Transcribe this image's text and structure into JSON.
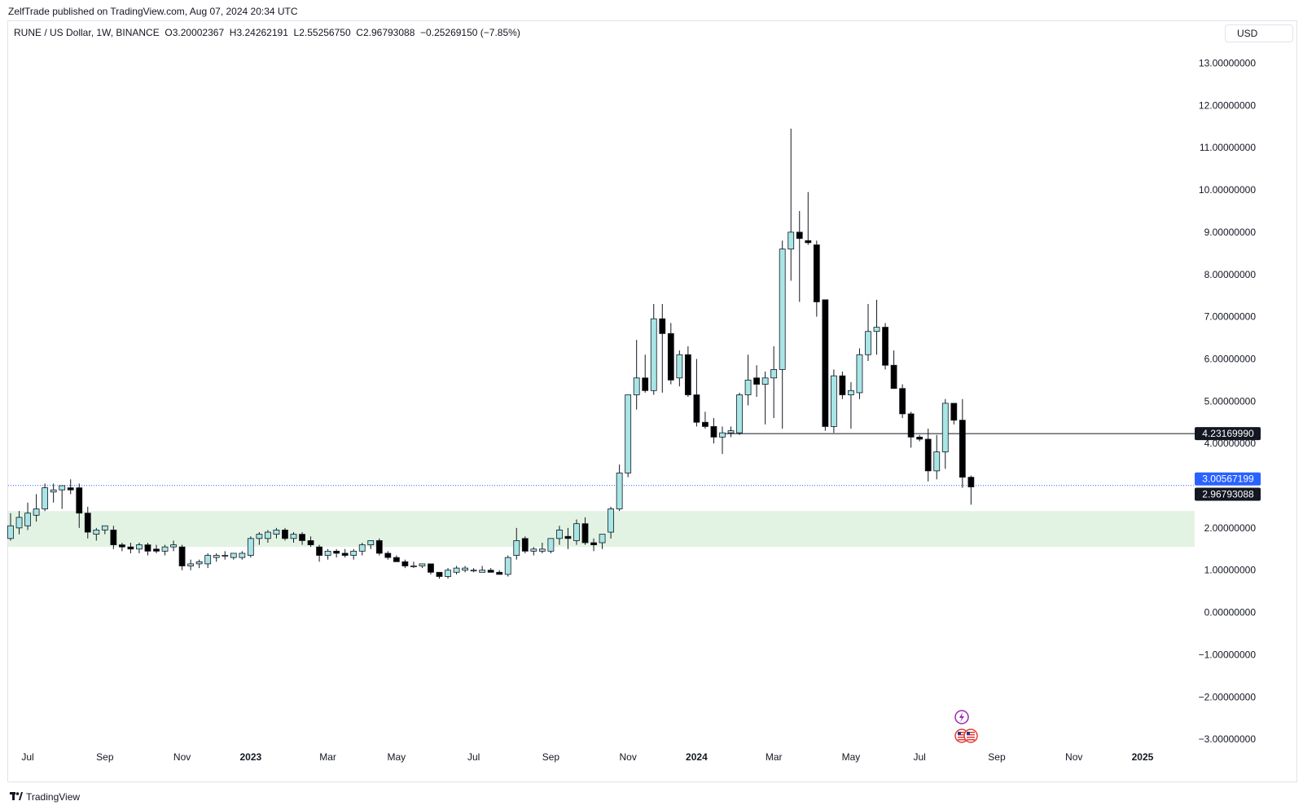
{
  "header": {
    "publisher": "ZelfTrade published on TradingView.com, Aug 07, 2024 20:34 UTC"
  },
  "legend": {
    "symbol": "RUNE / US Dollar, 1W, BINANCE",
    "open": "O3.20002367",
    "high": "H3.24262191",
    "low": "L2.55256750",
    "close": "C2.96793088",
    "change": "−0.25269150 (−7.85%)"
  },
  "currency_button": "USD",
  "footer": {
    "brand": "TradingView",
    "logo_icon": "tradingview-logo-icon"
  },
  "colors": {
    "up_body": "#a8e6e6",
    "down_body": "#000000",
    "support_zone": "#e3f3e3",
    "support_line": "#2962ff",
    "resistance_line": "#131722",
    "price_label_blue": "#2962ff",
    "price_label_dark": "#131722"
  },
  "price_labels": {
    "resistance": "4.23169990",
    "blue_line": "3.00567199",
    "last_price": "2.96793088"
  },
  "event_icons": [
    "lightning-icon",
    "us-flag-icon"
  ],
  "chart_data": {
    "type": "candlestick",
    "interval": "1W",
    "ylim": [
      -3.3,
      13.3
    ],
    "y_ticks": [
      {
        "value": 13,
        "label": "13.00000000"
      },
      {
        "value": 12,
        "label": "12.00000000"
      },
      {
        "value": 11,
        "label": "11.00000000"
      },
      {
        "value": 10,
        "label": "10.00000000"
      },
      {
        "value": 9,
        "label": "9.00000000"
      },
      {
        "value": 8,
        "label": "8.00000000"
      },
      {
        "value": 7,
        "label": "7.00000000"
      },
      {
        "value": 6,
        "label": "6.00000000"
      },
      {
        "value": 5,
        "label": "5.00000000"
      },
      {
        "value": 4,
        "label": "4.00000000"
      },
      {
        "value": 2,
        "label": "2.00000000"
      },
      {
        "value": 1,
        "label": "1.00000000"
      },
      {
        "value": 0,
        "label": "0.00000000"
      },
      {
        "value": -1,
        "label": "−1.00000000"
      },
      {
        "value": -2,
        "label": "−2.00000000"
      },
      {
        "value": -3,
        "label": "−3.00000000"
      }
    ],
    "x_ticks": [
      {
        "label": "Jul",
        "bold": false,
        "index": 2
      },
      {
        "label": "Sep",
        "bold": false,
        "index": 11
      },
      {
        "label": "Nov",
        "bold": false,
        "index": 20
      },
      {
        "label": "2023",
        "bold": true,
        "index": 28
      },
      {
        "label": "Mar",
        "bold": false,
        "index": 37
      },
      {
        "label": "May",
        "bold": false,
        "index": 45
      },
      {
        "label": "Jul",
        "bold": false,
        "index": 54
      },
      {
        "label": "Sep",
        "bold": false,
        "index": 63
      },
      {
        "label": "Nov",
        "bold": false,
        "index": 72
      },
      {
        "label": "2024",
        "bold": true,
        "index": 80
      },
      {
        "label": "Mar",
        "bold": false,
        "index": 89
      },
      {
        "label": "May",
        "bold": false,
        "index": 98
      },
      {
        "label": "Jul",
        "bold": false,
        "index": 106
      },
      {
        "label": "Sep",
        "bold": false,
        "index": 115
      },
      {
        "label": "Nov",
        "bold": false,
        "index": 124
      },
      {
        "label": "2025",
        "bold": true,
        "index": 132
      }
    ],
    "support_zone": {
      "from": 1.55,
      "to": 2.4
    },
    "horizontal_lines": [
      {
        "value": 4.2317,
        "style": "solid",
        "start_index": 83
      },
      {
        "value": 3.0057,
        "style": "dotted",
        "start_index": 0
      }
    ],
    "candles": [
      [
        1.75,
        2.35,
        1.7,
        2.05
      ],
      [
        2.0,
        2.4,
        1.85,
        2.25
      ],
      [
        2.05,
        2.6,
        1.95,
        2.35
      ],
      [
        2.3,
        2.8,
        2.15,
        2.45
      ],
      [
        2.45,
        3.05,
        2.4,
        2.95
      ],
      [
        2.85,
        3.05,
        2.6,
        2.9
      ],
      [
        2.9,
        3.0,
        2.45,
        3.0
      ],
      [
        2.95,
        3.15,
        2.8,
        2.9
      ],
      [
        2.95,
        3.05,
        2.0,
        2.35
      ],
      [
        2.35,
        2.5,
        1.75,
        1.9
      ],
      [
        1.85,
        2.0,
        1.7,
        1.95
      ],
      [
        1.95,
        2.05,
        1.85,
        2.05
      ],
      [
        1.95,
        2.05,
        1.5,
        1.6
      ],
      [
        1.6,
        1.65,
        1.45,
        1.55
      ],
      [
        1.55,
        1.65,
        1.4,
        1.5
      ],
      [
        1.5,
        1.65,
        1.4,
        1.6
      ],
      [
        1.6,
        1.65,
        1.35,
        1.45
      ],
      [
        1.5,
        1.6,
        1.4,
        1.45
      ],
      [
        1.45,
        1.6,
        1.35,
        1.55
      ],
      [
        1.55,
        1.7,
        1.45,
        1.6
      ],
      [
        1.55,
        1.6,
        1.0,
        1.1
      ],
      [
        1.1,
        1.25,
        1.0,
        1.15
      ],
      [
        1.15,
        1.25,
        1.05,
        1.2
      ],
      [
        1.15,
        1.4,
        1.05,
        1.35
      ],
      [
        1.3,
        1.4,
        1.2,
        1.35
      ],
      [
        1.35,
        1.45,
        1.25,
        1.35
      ],
      [
        1.3,
        1.4,
        1.25,
        1.4
      ],
      [
        1.3,
        1.45,
        1.25,
        1.4
      ],
      [
        1.35,
        1.8,
        1.3,
        1.75
      ],
      [
        1.75,
        1.9,
        1.6,
        1.85
      ],
      [
        1.75,
        1.95,
        1.65,
        1.9
      ],
      [
        1.85,
        2.0,
        1.75,
        1.95
      ],
      [
        1.95,
        2.0,
        1.7,
        1.75
      ],
      [
        1.75,
        1.9,
        1.65,
        1.85
      ],
      [
        1.85,
        1.9,
        1.6,
        1.7
      ],
      [
        1.7,
        1.8,
        1.55,
        1.6
      ],
      [
        1.55,
        1.6,
        1.2,
        1.35
      ],
      [
        1.35,
        1.5,
        1.25,
        1.45
      ],
      [
        1.45,
        1.5,
        1.3,
        1.4
      ],
      [
        1.4,
        1.5,
        1.3,
        1.35
      ],
      [
        1.35,
        1.5,
        1.25,
        1.45
      ],
      [
        1.45,
        1.65,
        1.35,
        1.6
      ],
      [
        1.6,
        1.7,
        1.5,
        1.7
      ],
      [
        1.7,
        1.75,
        1.35,
        1.4
      ],
      [
        1.4,
        1.45,
        1.25,
        1.3
      ],
      [
        1.3,
        1.35,
        1.2,
        1.2
      ],
      [
        1.2,
        1.25,
        1.05,
        1.1
      ],
      [
        1.1,
        1.2,
        1.05,
        1.1
      ],
      [
        1.1,
        1.15,
        1.05,
        1.15
      ],
      [
        1.15,
        1.15,
        0.9,
        0.95
      ],
      [
        0.95,
        0.95,
        0.8,
        0.85
      ],
      [
        0.85,
        1.05,
        0.8,
        1.0
      ],
      [
        0.95,
        1.1,
        0.9,
        1.05
      ],
      [
        1.0,
        1.1,
        0.95,
        1.05
      ],
      [
        1.0,
        1.05,
        0.95,
        1.0
      ],
      [
        0.95,
        1.1,
        0.95,
        1.0
      ],
      [
        1.0,
        1.05,
        0.95,
        0.95
      ],
      [
        0.95,
        1.0,
        0.9,
        0.9
      ],
      [
        0.9,
        1.35,
        0.85,
        1.3
      ],
      [
        1.35,
        2.0,
        1.25,
        1.7
      ],
      [
        1.75,
        1.8,
        1.4,
        1.45
      ],
      [
        1.45,
        1.55,
        1.35,
        1.5
      ],
      [
        1.45,
        1.65,
        1.4,
        1.5
      ],
      [
        1.45,
        1.7,
        1.4,
        1.75
      ],
      [
        1.75,
        2.05,
        1.6,
        1.95
      ],
      [
        1.8,
        2.0,
        1.5,
        1.75
      ],
      [
        1.7,
        2.2,
        1.6,
        2.1
      ],
      [
        2.1,
        2.25,
        1.6,
        1.65
      ],
      [
        1.65,
        1.75,
        1.45,
        1.6
      ],
      [
        1.65,
        1.85,
        1.5,
        1.85
      ],
      [
        1.9,
        2.5,
        1.75,
        2.45
      ],
      [
        2.45,
        3.5,
        2.4,
        3.3
      ],
      [
        3.3,
        5.15,
        3.2,
        5.15
      ],
      [
        5.15,
        6.45,
        4.8,
        5.55
      ],
      [
        5.55,
        6.1,
        5.2,
        5.25
      ],
      [
        5.25,
        7.3,
        5.15,
        6.95
      ],
      [
        6.95,
        7.3,
        5.2,
        6.6
      ],
      [
        6.6,
        6.85,
        5.4,
        5.5
      ],
      [
        5.55,
        6.2,
        5.35,
        6.1
      ],
      [
        6.1,
        6.3,
        5.1,
        5.15
      ],
      [
        5.15,
        6.0,
        4.4,
        4.5
      ],
      [
        4.5,
        4.75,
        4.35,
        4.4
      ],
      [
        4.4,
        4.6,
        4.0,
        4.15
      ],
      [
        4.15,
        4.4,
        3.75,
        4.25
      ],
      [
        4.25,
        4.4,
        4.15,
        4.3
      ],
      [
        4.25,
        5.2,
        4.2,
        5.15
      ],
      [
        5.15,
        6.1,
        4.9,
        5.5
      ],
      [
        5.55,
        5.85,
        5.1,
        5.4
      ],
      [
        5.4,
        5.7,
        4.45,
        5.55
      ],
      [
        5.55,
        6.3,
        4.6,
        5.75
      ],
      [
        5.75,
        8.8,
        4.35,
        8.6
      ],
      [
        8.6,
        11.45,
        7.85,
        9.0
      ],
      [
        9.0,
        9.5,
        7.35,
        8.85
      ],
      [
        8.8,
        9.95,
        8.7,
        8.75
      ],
      [
        8.7,
        8.8,
        7.0,
        7.35
      ],
      [
        7.4,
        7.4,
        4.3,
        4.4
      ],
      [
        4.4,
        5.75,
        4.25,
        5.6
      ],
      [
        5.6,
        5.7,
        5.05,
        5.15
      ],
      [
        5.15,
        5.45,
        4.35,
        5.25
      ],
      [
        5.2,
        6.25,
        5.05,
        6.1
      ],
      [
        6.1,
        7.3,
        5.95,
        6.65
      ],
      [
        6.65,
        7.4,
        6.1,
        6.75
      ],
      [
        6.75,
        6.85,
        5.75,
        5.85
      ],
      [
        5.85,
        6.2,
        5.3,
        5.3
      ],
      [
        5.3,
        5.4,
        4.6,
        4.7
      ],
      [
        4.7,
        4.75,
        3.9,
        4.15
      ],
      [
        4.15,
        4.2,
        4.05,
        4.1
      ],
      [
        4.1,
        4.35,
        3.1,
        3.35
      ],
      [
        3.35,
        4.2,
        3.15,
        3.8
      ],
      [
        3.8,
        5.05,
        3.4,
        4.95
      ],
      [
        4.95,
        4.95,
        4.45,
        4.55
      ],
      [
        4.55,
        5.05,
        2.95,
        3.2
      ],
      [
        3.2,
        3.24,
        2.55,
        2.97
      ]
    ]
  }
}
